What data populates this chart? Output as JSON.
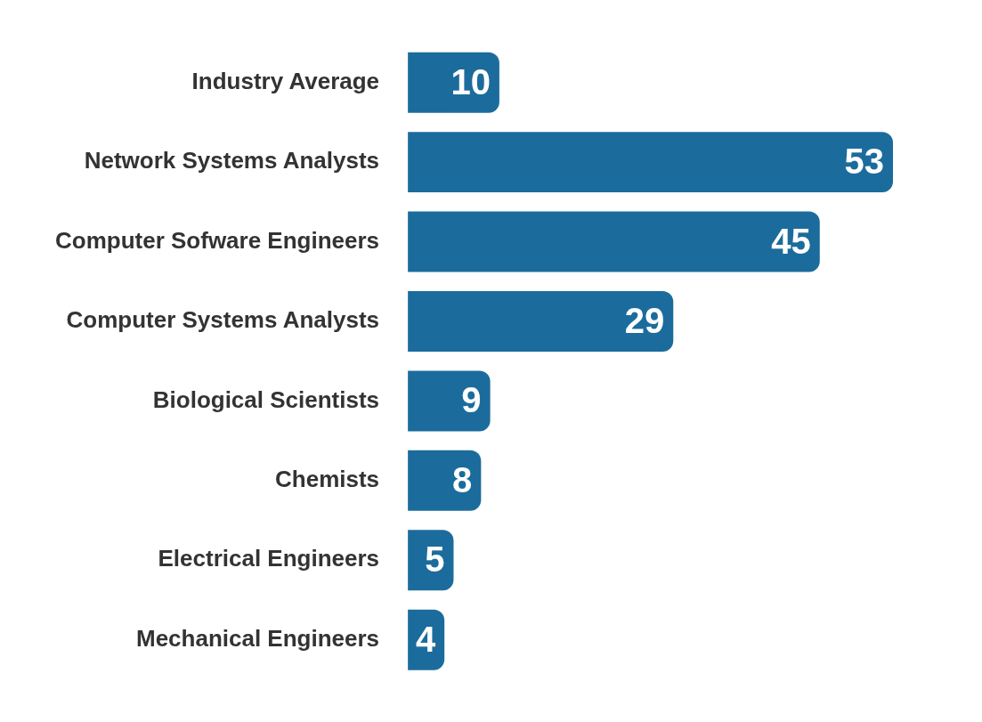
{
  "chart_data": {
    "type": "bar",
    "orientation": "horizontal",
    "categories": [
      "Industry Average",
      "Network Systems Analysts",
      "Computer Sofware Engineers",
      "Computer Systems Analysts",
      "Biological Scientists",
      "Chemists",
      "Electrical Engineers",
      "Mechanical Engineers"
    ],
    "values": [
      10,
      53,
      45,
      29,
      9,
      8,
      5,
      4
    ],
    "color": "#1b6c9c",
    "data_labels": true,
    "legend": false
  }
}
